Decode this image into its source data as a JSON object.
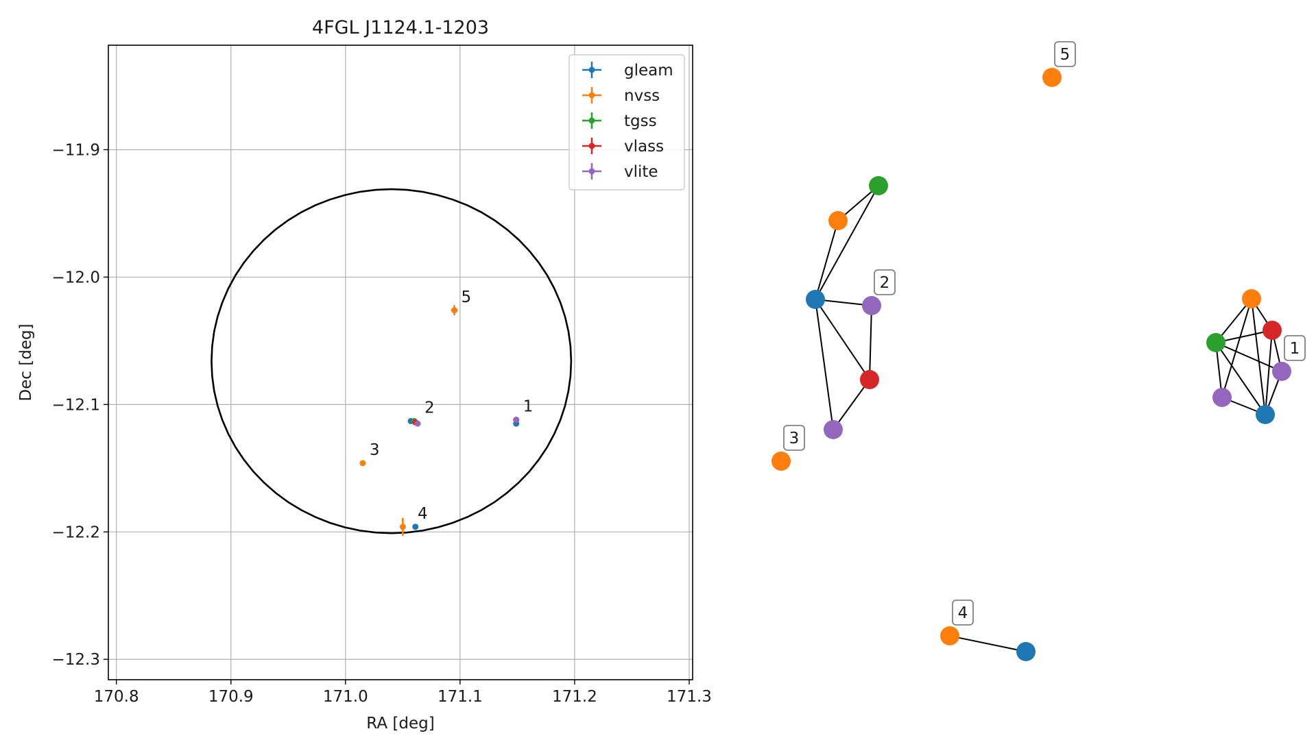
{
  "chart_data": [
    {
      "type": "scatter",
      "title": "4FGL J1124.1-1203",
      "xlabel": "RA [deg]",
      "ylabel": "Dec [deg]",
      "xlim": [
        170.793,
        171.303
      ],
      "ylim": [
        -12.316,
        -11.818
      ],
      "xticks": [
        170.8,
        170.9,
        171.0,
        171.1,
        171.2,
        171.3
      ],
      "xtick_labels": [
        "170.8",
        "170.9",
        "171.0",
        "171.1",
        "171.2",
        "171.3"
      ],
      "yticks": [
        -11.9,
        -12.0,
        -12.1,
        -12.2,
        -12.3
      ],
      "ytick_labels": [
        "−11.9",
        "−12.0",
        "−12.1",
        "−12.2",
        "−12.3"
      ],
      "grid": true,
      "legend_position": "top-right",
      "series": [
        {
          "name": "gleam",
          "color": "#1f77b4",
          "points": [
            {
              "x": 171.149,
              "y": -12.115
            },
            {
              "x": 171.057,
              "y": -12.113
            },
            {
              "x": 171.061,
              "y": -12.196
            }
          ]
        },
        {
          "name": "nvss",
          "color": "#ff7f0e",
          "points": [
            {
              "x": 171.095,
              "y": -12.026,
              "xerr": 0.003,
              "yerr": 0.004
            },
            {
              "x": 171.015,
              "y": -12.146
            },
            {
              "x": 171.05,
              "y": -12.196,
              "xerr": 0.001,
              "yerr": 0.007
            }
          ]
        },
        {
          "name": "tgss",
          "color": "#2ca02c",
          "points": [
            {
              "x": 171.06,
              "y": -12.113
            }
          ]
        },
        {
          "name": "vlass",
          "color": "#d62728",
          "points": [
            {
              "x": 171.149,
              "y": -12.112
            },
            {
              "x": 171.061,
              "y": -12.114
            }
          ]
        },
        {
          "name": "vlite",
          "color": "#9467bd",
          "points": [
            {
              "x": 171.149,
              "y": -12.112
            },
            {
              "x": 171.063,
              "y": -12.115
            }
          ]
        }
      ],
      "group_labels": [
        {
          "text": "1",
          "x": 171.149,
          "y": -12.112
        },
        {
          "text": "2",
          "x": 171.063,
          "y": -12.113
        },
        {
          "text": "3",
          "x": 171.015,
          "y": -12.146
        },
        {
          "text": "4",
          "x": 171.057,
          "y": -12.196
        },
        {
          "text": "5",
          "x": 171.095,
          "y": -12.026
        }
      ],
      "ellipse": {
        "center_x": 171.04,
        "center_y": -12.066,
        "semi_ra": 0.157,
        "semi_dec": 0.135
      }
    },
    {
      "type": "network",
      "nodes": [
        {
          "id": "g1",
          "color": "#1f77b4"
        },
        {
          "id": "n1",
          "color": "#ff7f0e"
        },
        {
          "id": "t1",
          "color": "#2ca02c"
        },
        {
          "id": "r1",
          "color": "#d62728"
        },
        {
          "id": "v1a",
          "color": "#9467bd"
        },
        {
          "id": "v1b",
          "color": "#9467bd"
        },
        {
          "id": "g2",
          "color": "#1f77b4"
        },
        {
          "id": "n2",
          "color": "#ff7f0e"
        },
        {
          "id": "t2",
          "color": "#2ca02c"
        },
        {
          "id": "r2",
          "color": "#d62728"
        },
        {
          "id": "v2a",
          "color": "#9467bd"
        },
        {
          "id": "v2b",
          "color": "#9467bd"
        },
        {
          "id": "n3",
          "color": "#ff7f0e"
        },
        {
          "id": "g4",
          "color": "#1f77b4"
        },
        {
          "id": "n4",
          "color": "#ff7f0e"
        },
        {
          "id": "n5",
          "color": "#ff7f0e"
        }
      ],
      "edges": [
        [
          "n1",
          "t1"
        ],
        [
          "n1",
          "r1"
        ],
        [
          "n1",
          "g1"
        ],
        [
          "n1",
          "v1b"
        ],
        [
          "t1",
          "r1"
        ],
        [
          "t1",
          "v1a"
        ],
        [
          "t1",
          "v1b"
        ],
        [
          "t1",
          "g1"
        ],
        [
          "r1",
          "v1a"
        ],
        [
          "r1",
          "g1"
        ],
        [
          "v1a",
          "g1"
        ],
        [
          "v1b",
          "g1"
        ],
        [
          "g2",
          "n2"
        ],
        [
          "g2",
          "t2"
        ],
        [
          "g2",
          "v2a"
        ],
        [
          "g2",
          "r2"
        ],
        [
          "g2",
          "v2b"
        ],
        [
          "n2",
          "t2"
        ],
        [
          "v2a",
          "r2"
        ],
        [
          "r2",
          "v2b"
        ],
        [
          "n4",
          "g4"
        ]
      ],
      "labels": [
        {
          "text": "1",
          "node": "v1a"
        },
        {
          "text": "2",
          "node": "v2a"
        },
        {
          "text": "3",
          "node": "n3"
        },
        {
          "text": "4",
          "node": "n4"
        },
        {
          "text": "5",
          "node": "n5"
        }
      ]
    }
  ]
}
